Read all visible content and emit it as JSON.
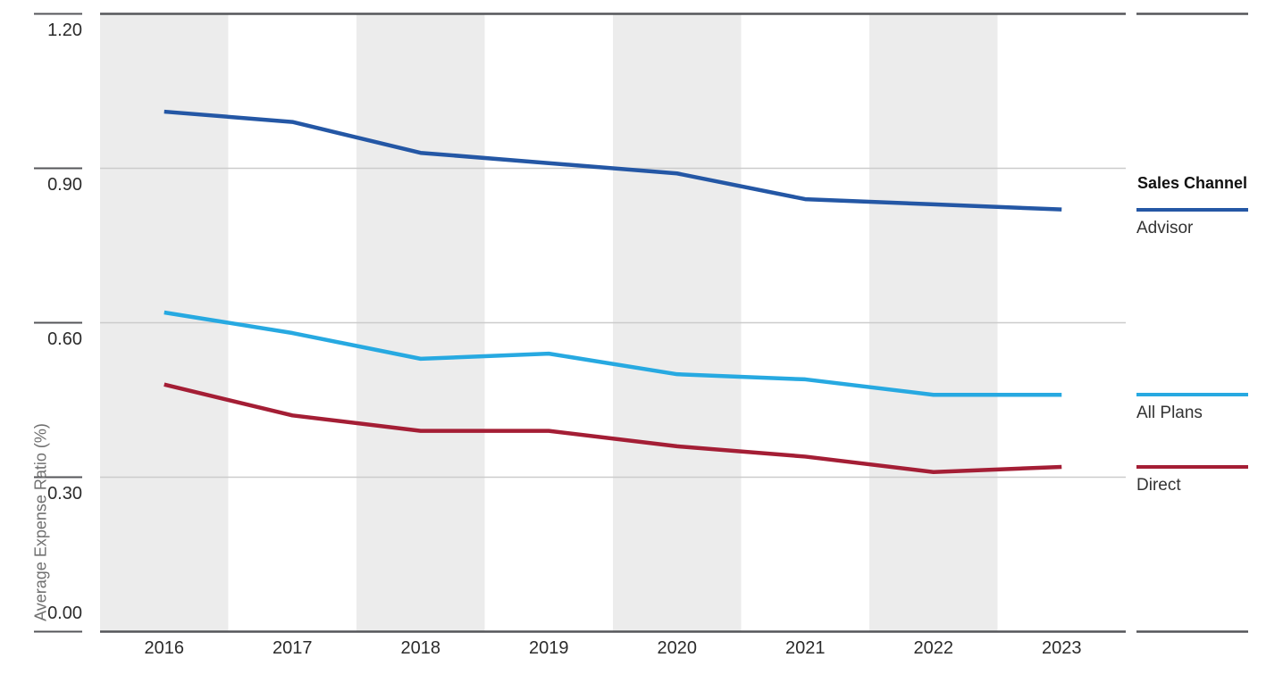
{
  "chart_data": {
    "type": "line",
    "title": "",
    "xlabel": "",
    "ylabel": "Average Expense Ratio (%)",
    "x_labels": [
      "2016",
      "2017",
      "2018",
      "2019",
      "2020",
      "2021",
      "2022",
      "2023"
    ],
    "series": [
      {
        "name": "Advisor",
        "color": "#2457A5",
        "values": [
          1.01,
          0.99,
          0.93,
          0.91,
          0.89,
          0.84,
          0.83,
          0.82
        ]
      },
      {
        "name": "All Plans",
        "color": "#27A9E1",
        "values": [
          0.62,
          0.58,
          0.53,
          0.54,
          0.5,
          0.49,
          0.46,
          0.46
        ]
      },
      {
        "name": "Direct",
        "color": "#A41E35",
        "values": [
          0.48,
          0.42,
          0.39,
          0.39,
          0.36,
          0.34,
          0.31,
          0.32
        ]
      }
    ],
    "ylim": [
      0.0,
      1.2
    ],
    "yticks": [
      0.0,
      0.3,
      0.6,
      0.9,
      1.2
    ],
    "ytick_labels": [
      "0.00",
      "0.30",
      "0.60",
      "0.90",
      "1.20"
    ],
    "grid": "horizontal",
    "band_shading": "alternating columns starting shaded at 2016",
    "legend_position": "right"
  },
  "legend": {
    "title": "Sales Channel",
    "entries": [
      "Advisor",
      "All Plans",
      "Direct"
    ]
  },
  "colors": {
    "band": "#ECECEC",
    "gridline": "#CBCBCB",
    "axis": "#55565A",
    "tick_text": "#2b2b2b",
    "axis_title_text": "#707070",
    "legend_title_text": "#111111",
    "legend_label_text": "#333333",
    "background": "#FFFFFF"
  }
}
